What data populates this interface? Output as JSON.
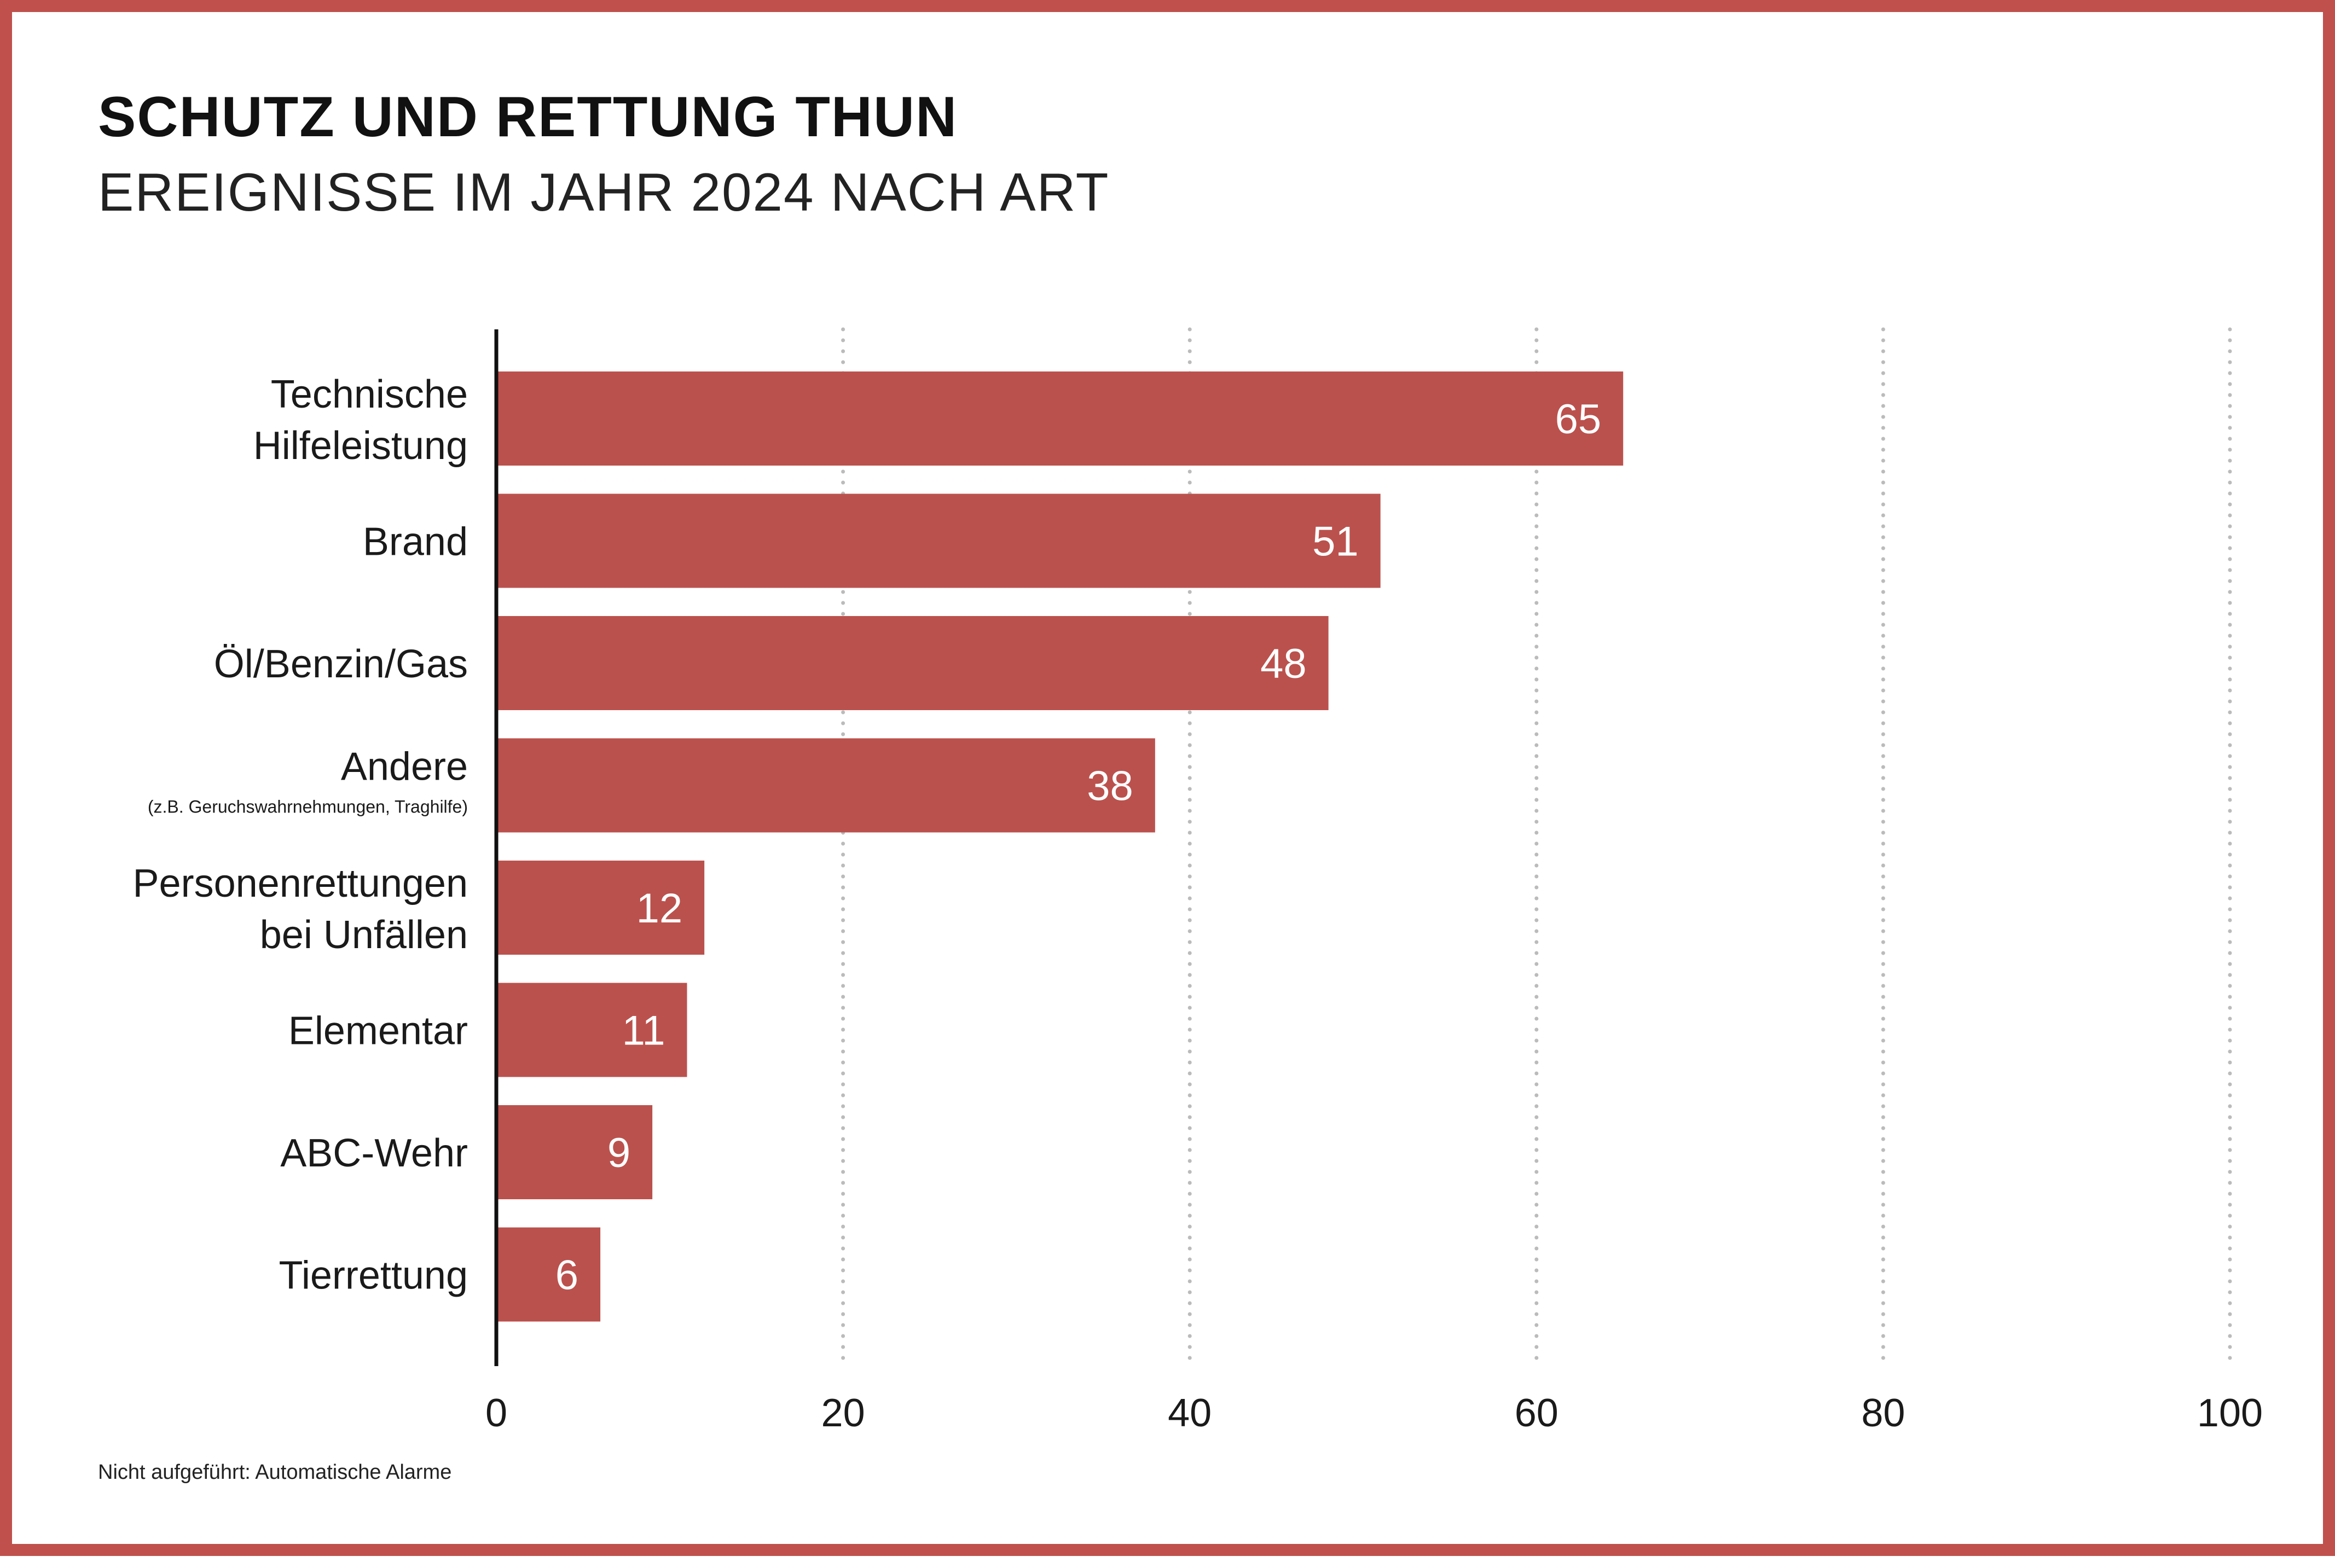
{
  "title": "SCHUTZ UND RETTUNG THUN",
  "subtitle": "EREIGNISSE IM JAHR 2024 NACH ART",
  "footnote": "Nicht aufgeführt: Automatische Alarme",
  "colors": {
    "bar": "#bb514d",
    "frame": "#bf504b",
    "grid": "#bbbbbb",
    "axis": "#111111"
  },
  "chart_data": {
    "type": "bar",
    "orientation": "horizontal",
    "categories": [
      "Technische Hilfeleistung",
      "Brand",
      "Öl/Benzin/Gas",
      "Andere",
      "Personenrettungen bei Unfällen",
      "Elementar",
      "ABC-Wehr",
      "Tierrettung"
    ],
    "category_lines": [
      [
        "Technische",
        "Hilfeleistung"
      ],
      [
        "Brand"
      ],
      [
        "Öl/Benzin/Gas"
      ],
      [
        "Andere"
      ],
      [
        "Personenrettungen",
        "bei Unfällen"
      ],
      [
        "Elementar"
      ],
      [
        "ABC-Wehr"
      ],
      [
        "Tierrettung"
      ]
    ],
    "category_notes": [
      "",
      "",
      "",
      "(z.B. Geruchswahrnehmungen, Traghilfe)",
      "",
      "",
      "",
      ""
    ],
    "values": [
      65,
      51,
      48,
      38,
      12,
      11,
      9,
      6
    ],
    "value_labels": [
      "65",
      "51",
      "48",
      "38",
      "12",
      "11",
      "9",
      "6"
    ],
    "xlim": [
      0,
      100
    ],
    "xticks": [
      "0",
      "20",
      "40",
      "60",
      "80",
      "100"
    ],
    "grid": "vertical dotted",
    "legend": "none"
  }
}
